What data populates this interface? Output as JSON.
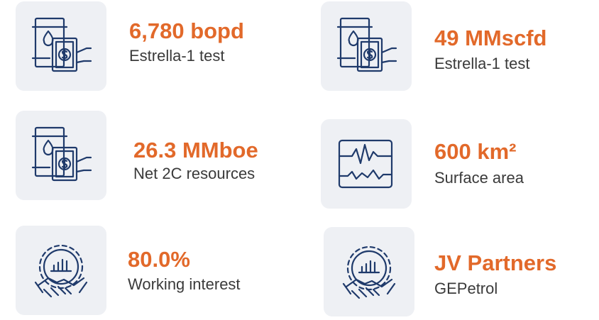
{
  "items": [
    {
      "value": "6,780 bopd",
      "label": "Estrella-1 test"
    },
    {
      "value": "49 MMscfd",
      "label": "Estrella-1 test"
    },
    {
      "value": "26.3 MMboe",
      "label": "Net 2C resources"
    },
    {
      "value": "600 km²",
      "label": "Surface area"
    },
    {
      "value": "80.0%",
      "label": "Working interest"
    },
    {
      "value": "JV Partners",
      "label": "GEPetrol"
    }
  ]
}
